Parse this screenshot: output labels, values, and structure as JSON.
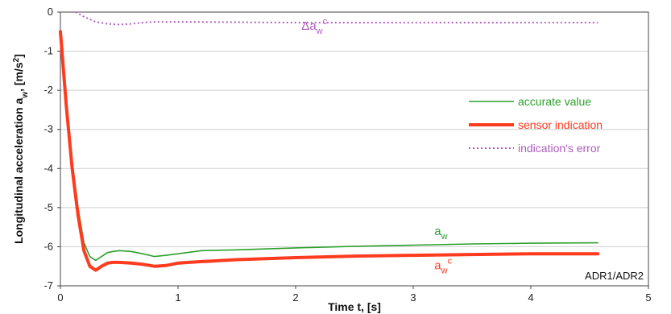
{
  "chart_data": {
    "type": "line",
    "xlabel": "Time t, [s]",
    "ylabel_main": "Longitudinal acceleration a",
    "ylabel_sub": "w",
    "ylabel_tail": ", [m/s",
    "ylabel_sup": "2",
    "ylabel_end": "]",
    "xlim": [
      0,
      5
    ],
    "ylim": [
      -7,
      0
    ],
    "xticks": [
      "0",
      "1",
      "2",
      "3",
      "4",
      "5"
    ],
    "yticks": [
      "0",
      "-1",
      "-2",
      "-3",
      "-4",
      "-5",
      "-6",
      "-7"
    ],
    "corner_label": "ADR1/ADR2",
    "series": [
      {
        "name": "accurate value",
        "color": "#2ca02c",
        "style": "solid-thin",
        "x": [
          0,
          0.05,
          0.1,
          0.15,
          0.2,
          0.25,
          0.3,
          0.35,
          0.4,
          0.45,
          0.5,
          0.6,
          0.7,
          0.8,
          0.9,
          1.0,
          1.2,
          1.5,
          2.0,
          2.5,
          3.0,
          3.5,
          4.0,
          4.57
        ],
        "y": [
          -0.5,
          -2.2,
          -3.8,
          -5.0,
          -5.9,
          -6.25,
          -6.35,
          -6.25,
          -6.15,
          -6.12,
          -6.1,
          -6.12,
          -6.18,
          -6.25,
          -6.22,
          -6.18,
          -6.1,
          -6.08,
          -6.03,
          -5.99,
          -5.96,
          -5.93,
          -5.91,
          -5.9
        ]
      },
      {
        "name": "sensor indication",
        "color": "#ff3b1f",
        "style": "solid-thick",
        "x": [
          0,
          0.05,
          0.1,
          0.15,
          0.2,
          0.25,
          0.3,
          0.35,
          0.4,
          0.45,
          0.5,
          0.6,
          0.7,
          0.8,
          0.9,
          1.0,
          1.2,
          1.5,
          2.0,
          2.5,
          3.0,
          3.5,
          4.0,
          4.57
        ],
        "y": [
          -0.5,
          -2.4,
          -4.0,
          -5.2,
          -6.1,
          -6.5,
          -6.6,
          -6.5,
          -6.42,
          -6.4,
          -6.4,
          -6.42,
          -6.45,
          -6.5,
          -6.48,
          -6.42,
          -6.38,
          -6.33,
          -6.28,
          -6.24,
          -6.22,
          -6.2,
          -6.18,
          -6.18
        ]
      },
      {
        "name": "indication's error",
        "color": "#b05cc0",
        "style": "dotted",
        "x": [
          0.13,
          0.2,
          0.3,
          0.4,
          0.5,
          0.6,
          0.7,
          0.8,
          1.0,
          1.5,
          2.0,
          3.0,
          4.0,
          4.57
        ],
        "y": [
          0.0,
          -0.12,
          -0.25,
          -0.3,
          -0.32,
          -0.3,
          -0.27,
          -0.25,
          -0.25,
          -0.26,
          -0.27,
          -0.27,
          -0.27,
          -0.27
        ]
      }
    ],
    "annotations": [
      {
        "base": "Δa",
        "sub": "w",
        "sup": "c",
        "color": "#b05cc0",
        "x": 2.05,
        "y": -0.45
      },
      {
        "base": "a",
        "sub": "w",
        "sup": "",
        "color": "#2ca02c",
        "x": 3.18,
        "y": -5.7
      },
      {
        "base": "a",
        "sub": "w",
        "sup": "c",
        "color": "#ff3b1f",
        "x": 3.18,
        "y": -6.58
      }
    ]
  }
}
